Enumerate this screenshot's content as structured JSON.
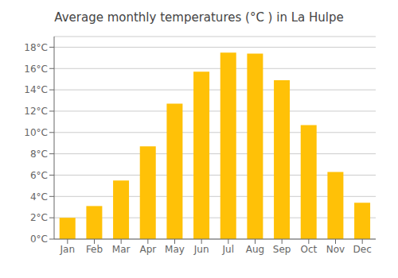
{
  "chart_data": {
    "type": "bar",
    "title": "Average monthly temperatures (°C ) in La Hulpe",
    "categories": [
      "Jan",
      "Feb",
      "Mar",
      "Apr",
      "May",
      "Jun",
      "Jul",
      "Aug",
      "Sep",
      "Oct",
      "Nov",
      "Dec"
    ],
    "values": [
      2.0,
      3.1,
      5.5,
      8.7,
      12.7,
      15.7,
      17.5,
      17.4,
      14.9,
      10.7,
      6.3,
      3.4
    ],
    "color": "#FFC107",
    "ylim": [
      0,
      19
    ],
    "yticks": [
      {
        "value": 0,
        "label": "0°C"
      },
      {
        "value": 2,
        "label": "2°C"
      },
      {
        "value": 4,
        "label": "4°C"
      },
      {
        "value": 6,
        "label": "6°C"
      },
      {
        "value": 8,
        "label": "8°C"
      },
      {
        "value": 10,
        "label": "10°C"
      },
      {
        "value": 12,
        "label": "12°C"
      },
      {
        "value": 14,
        "label": "14°C"
      },
      {
        "value": 16,
        "label": "16°C"
      },
      {
        "value": 18,
        "label": "18°C"
      }
    ],
    "grid": true
  }
}
